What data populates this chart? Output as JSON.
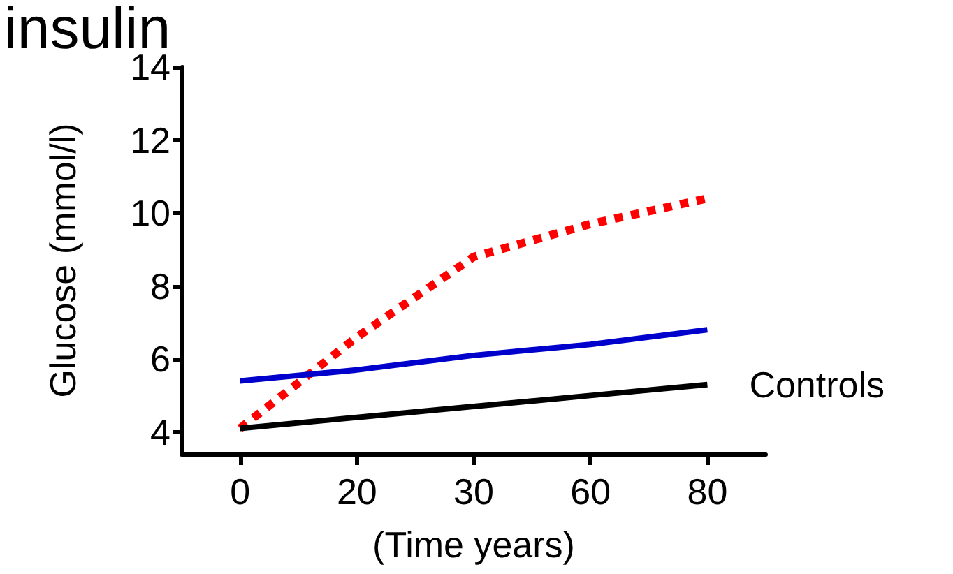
{
  "chart_data": {
    "type": "line",
    "title": "insulin",
    "xlabel": "(Time years)",
    "ylabel": "Glucose (mmol/l)",
    "categories": [
      "0",
      "20",
      "30",
      "60",
      "80"
    ],
    "ylim": [
      3.4,
      14
    ],
    "yticks": [
      4,
      6,
      8,
      10,
      12,
      14
    ],
    "series": [
      {
        "color": "#ff0000",
        "values": [
          4.1,
          6.6,
          8.8,
          9.7,
          10.4
        ],
        "line_style": "dotted"
      },
      {
        "color": "#0000cc",
        "values": [
          5.4,
          5.7,
          6.1,
          6.4,
          6.8
        ],
        "line_style": "solid"
      },
      {
        "name": "Controls",
        "color": "#000000",
        "values": [
          4.1,
          4.4,
          4.7,
          5.0,
          5.3
        ],
        "line_style": "solid"
      }
    ],
    "legend": false,
    "grid": false,
    "marker": "none"
  }
}
